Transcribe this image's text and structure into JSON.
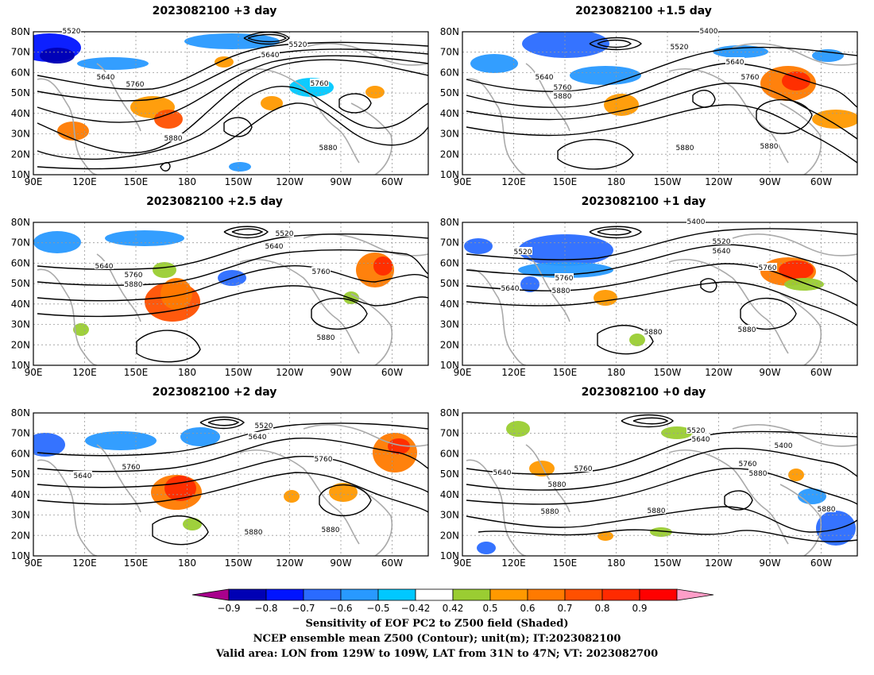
{
  "colors": {
    "shading_scale": [
      "#a8008c",
      "#0000b4",
      "#0014ff",
      "#2a6bff",
      "#2899ff",
      "#00c8ff",
      "#ffffff",
      "#9acd32",
      "#ff9900",
      "#ff7a00",
      "#ff5000",
      "#ff2a00",
      "#ff0000",
      "#ff9ec8"
    ],
    "contour": "#000000",
    "coastline": "#aaaaaa",
    "grid": "#999999"
  },
  "axes": {
    "lon_ticks": [
      "90E",
      "120E",
      "150E",
      "180",
      "150W",
      "120W",
      "90W",
      "60W"
    ],
    "lat_ticks": [
      "80N",
      "70N",
      "60N",
      "50N",
      "40N",
      "30N",
      "20N",
      "10N"
    ]
  },
  "panels": [
    {
      "id": "p3",
      "title": "2023082100 +3 day",
      "contour_labels": [
        [
          "5520",
          90,
          45
        ],
        [
          "5520",
          375,
          62
        ],
        [
          "5640",
          340,
          75
        ],
        [
          "5640",
          133,
          103
        ],
        [
          "5760",
          170,
          112
        ],
        [
          "5760",
          402,
          111
        ],
        [
          "5880",
          218,
          180
        ],
        [
          "5880",
          413,
          192
        ]
      ]
    },
    {
      "id": "p15",
      "title": "2023082100 +1.5 day",
      "contour_labels": [
        [
          "5400",
          892,
          45
        ],
        [
          "5520",
          855,
          65
        ],
        [
          "5640",
          925,
          84
        ],
        [
          "5640",
          685,
          103
        ],
        [
          "5760",
          944,
          103
        ],
        [
          "5760",
          708,
          116
        ],
        [
          "5880",
          708,
          127
        ],
        [
          "5880",
          862,
          192
        ],
        [
          "5880",
          968,
          190
        ]
      ]
    },
    {
      "id": "p25",
      "title": "2023082100 +2.5 day",
      "contour_labels": [
        [
          "5520",
          358,
          300
        ],
        [
          "5640",
          345,
          316
        ],
        [
          "5640",
          131,
          341
        ],
        [
          "5760",
          168,
          352
        ],
        [
          "5880",
          168,
          364
        ],
        [
          "5760",
          404,
          348
        ],
        [
          "5880",
          410,
          431
        ]
      ]
    },
    {
      "id": "p1",
      "title": "2023082100 +1 day",
      "contour_labels": [
        [
          "5400",
          876,
          285
        ],
        [
          "5520",
          658,
          323
        ],
        [
          "5520",
          908,
          310
        ],
        [
          "5640",
          908,
          322
        ],
        [
          "5640",
          642,
          369
        ],
        [
          "5760",
          966,
          343
        ],
        [
          "5760",
          710,
          356
        ],
        [
          "5880",
          706,
          372
        ],
        [
          "5880",
          822,
          424
        ],
        [
          "5880",
          940,
          421
        ]
      ]
    },
    {
      "id": "p2",
      "title": "2023082100 +2 day",
      "contour_labels": [
        [
          "5520",
          332,
          542
        ],
        [
          "5640",
          324,
          556
        ],
        [
          "5760",
          407,
          584
        ],
        [
          "5760",
          165,
          594
        ],
        [
          "5640",
          104,
          605
        ],
        [
          "5880",
          319,
          676
        ],
        [
          "5880",
          416,
          673
        ]
      ]
    },
    {
      "id": "p0",
      "title": "2023082100 +0 day",
      "contour_labels": [
        [
          "5520",
          876,
          548
        ],
        [
          "5640",
          882,
          559
        ],
        [
          "5400",
          986,
          567
        ],
        [
          "5760",
          941,
          590
        ],
        [
          "5880",
          954,
          602
        ],
        [
          "5640",
          632,
          601
        ],
        [
          "5760",
          734,
          596
        ],
        [
          "5880",
          701,
          616
        ],
        [
          "5880",
          692,
          650
        ],
        [
          "5880",
          826,
          649
        ],
        [
          "5880",
          1040,
          647
        ]
      ]
    }
  ],
  "colorbar": {
    "tick_labels": [
      "−0.9",
      "−0.8",
      "−0.7",
      "−0.6",
      "−0.5",
      "−0.42",
      "0.42",
      "0.5",
      "0.6",
      "0.7",
      "0.8",
      "0.9"
    ]
  },
  "caption": {
    "line1": "Sensitivity of EOF PC2 to Z500 field (Shaded)",
    "line2": "NCEP ensemble mean Z500 (Contour); unit(m); IT:2023082100",
    "line3": "Valid area: LON from 129W to 109W, LAT from 31N to 47N; VT: 2023082700"
  }
}
